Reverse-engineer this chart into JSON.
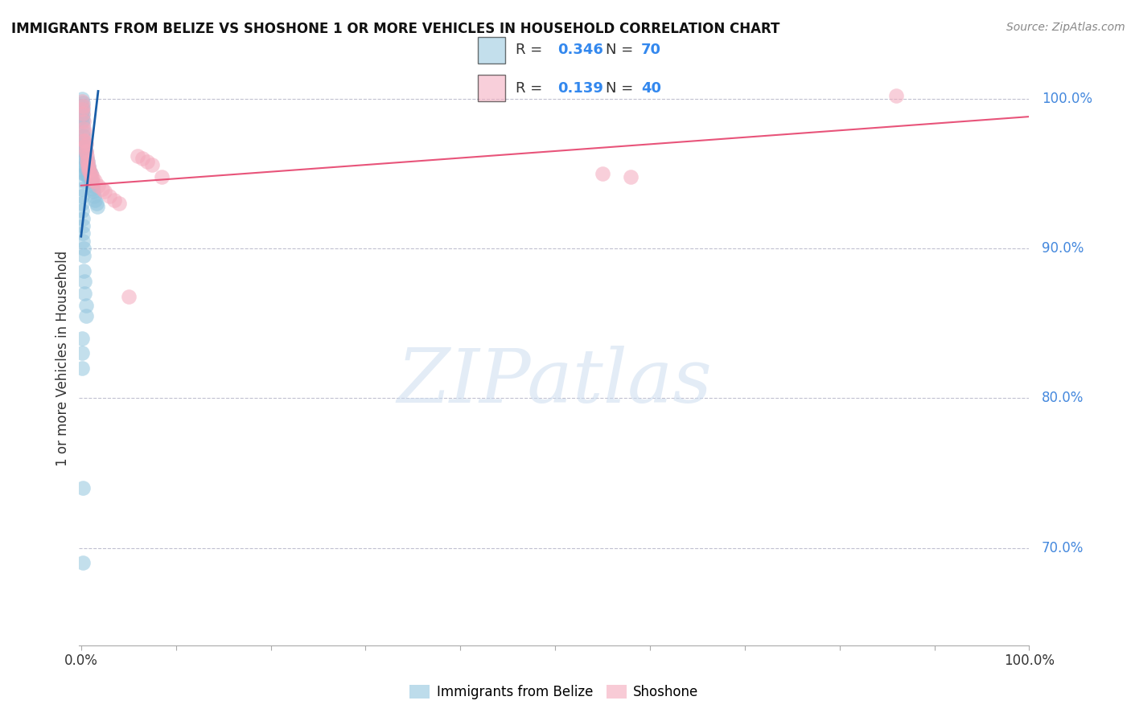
{
  "title": "IMMIGRANTS FROM BELIZE VS SHOSHONE 1 OR MORE VEHICLES IN HOUSEHOLD CORRELATION CHART",
  "source": "Source: ZipAtlas.com",
  "ylabel": "1 or more Vehicles in Household",
  "right_yticks": [
    70.0,
    80.0,
    90.0,
    100.0
  ],
  "legend_blue_R": "0.346",
  "legend_blue_N": "70",
  "legend_pink_R": "0.139",
  "legend_pink_N": "40",
  "blue_color": "#92c5de",
  "pink_color": "#f4a9bc",
  "blue_line_color": "#1a5ea8",
  "pink_line_color": "#e8547a",
  "watermark": "ZIPatlas",
  "blue_scatter_x": [
    0.001,
    0.001,
    0.001,
    0.001,
    0.001,
    0.002,
    0.002,
    0.002,
    0.002,
    0.002,
    0.002,
    0.002,
    0.002,
    0.002,
    0.003,
    0.003,
    0.003,
    0.003,
    0.003,
    0.003,
    0.003,
    0.004,
    0.004,
    0.004,
    0.004,
    0.004,
    0.005,
    0.005,
    0.005,
    0.005,
    0.006,
    0.006,
    0.006,
    0.007,
    0.007,
    0.007,
    0.008,
    0.008,
    0.009,
    0.009,
    0.01,
    0.01,
    0.011,
    0.012,
    0.012,
    0.013,
    0.014,
    0.015,
    0.016,
    0.017,
    0.001,
    0.001,
    0.001,
    0.001,
    0.002,
    0.002,
    0.002,
    0.002,
    0.003,
    0.003,
    0.003,
    0.004,
    0.004,
    0.005,
    0.005,
    0.001,
    0.001,
    0.001,
    0.002,
    0.002
  ],
  "blue_scatter_y": [
    1.0,
    0.995,
    0.992,
    0.988,
    0.985,
    0.997,
    0.993,
    0.989,
    0.986,
    0.982,
    0.978,
    0.975,
    0.972,
    0.968,
    0.975,
    0.97,
    0.965,
    0.96,
    0.955,
    0.95,
    0.945,
    0.97,
    0.965,
    0.96,
    0.955,
    0.95,
    0.965,
    0.96,
    0.955,
    0.95,
    0.96,
    0.955,
    0.95,
    0.958,
    0.953,
    0.948,
    0.955,
    0.95,
    0.952,
    0.948,
    0.95,
    0.945,
    0.945,
    0.942,
    0.94,
    0.938,
    0.935,
    0.932,
    0.93,
    0.928,
    0.94,
    0.935,
    0.93,
    0.925,
    0.92,
    0.915,
    0.91,
    0.905,
    0.9,
    0.895,
    0.885,
    0.878,
    0.87,
    0.862,
    0.855,
    0.84,
    0.83,
    0.82,
    0.74,
    0.69
  ],
  "pink_scatter_x": [
    0.001,
    0.001,
    0.002,
    0.002,
    0.003,
    0.003,
    0.004,
    0.004,
    0.005,
    0.005,
    0.006,
    0.007,
    0.008,
    0.009,
    0.01,
    0.012,
    0.015,
    0.018,
    0.022,
    0.025,
    0.03,
    0.035,
    0.04,
    0.05,
    0.06,
    0.065,
    0.07,
    0.075,
    0.55,
    0.58,
    0.003,
    0.004,
    0.005,
    0.006,
    0.007,
    0.008,
    0.01,
    0.012,
    0.085,
    0.86
  ],
  "pink_scatter_y": [
    0.998,
    0.993,
    0.995,
    0.99,
    0.985,
    0.98,
    0.978,
    0.972,
    0.97,
    0.965,
    0.962,
    0.958,
    0.955,
    0.952,
    0.95,
    0.948,
    0.945,
    0.942,
    0.94,
    0.938,
    0.935,
    0.932,
    0.93,
    0.868,
    0.962,
    0.96,
    0.958,
    0.956,
    0.95,
    0.948,
    0.972,
    0.968,
    0.964,
    0.958,
    0.955,
    0.952,
    0.948,
    0.945,
    0.948,
    1.002
  ],
  "blue_trend_x": [
    0.0,
    0.018
  ],
  "blue_trend_y": [
    0.908,
    1.005
  ],
  "pink_trend_x": [
    0.0,
    1.0
  ],
  "pink_trend_y": [
    0.942,
    0.988
  ],
  "xmin": -0.002,
  "xmax": 1.0,
  "ymin": 0.635,
  "ymax": 1.018
}
